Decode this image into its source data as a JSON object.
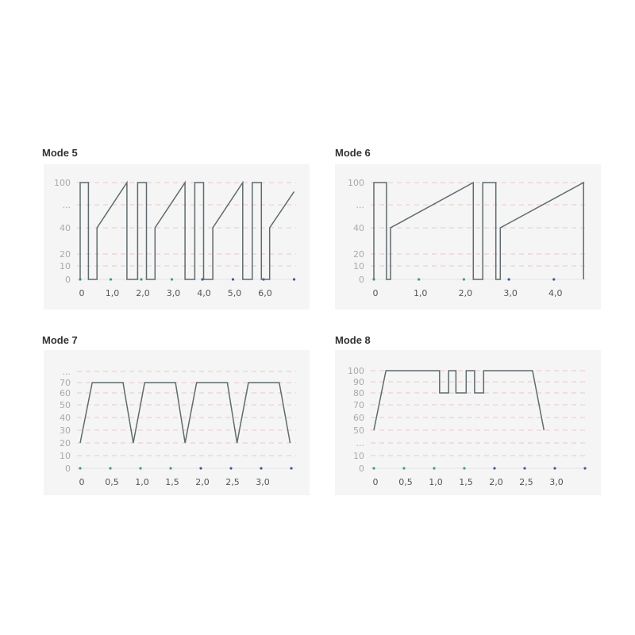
{
  "colors": {
    "line": "#5f6b6e",
    "grid": "#e9b8b8",
    "dot_early": "#3f9c86",
    "dot_late": "#3b5b93",
    "panel": "#f5f5f5"
  },
  "chart_data": [
    {
      "type": "line",
      "title": "Mode 5",
      "grid": true,
      "y_ticks": [
        "0",
        "10",
        "20",
        "40",
        "...",
        "100"
      ],
      "x_ticks": [
        "0",
        "1,0",
        "2,0",
        "3,0",
        "4,0",
        "5,0",
        "6,0"
      ],
      "x_tick_values": [
        0,
        1,
        2,
        3,
        4,
        5,
        6
      ],
      "x_markers": [
        0,
        1,
        2,
        3,
        4,
        5,
        6,
        7
      ],
      "xlim": [
        0,
        7
      ],
      "x": [
        0,
        0,
        0.27,
        0.27,
        0.55,
        0.55,
        1.53,
        1.53,
        1.88,
        1.88,
        2.17,
        2.17,
        2.45,
        2.45,
        3.43,
        3.43,
        3.75,
        3.75,
        4.04,
        4.04,
        4.34,
        4.34,
        5.32,
        5.32,
        5.63,
        5.63,
        5.93,
        5.93,
        6.2,
        6.2,
        7.0
      ],
      "y": [
        0,
        100,
        100,
        0,
        0,
        40,
        100,
        0,
        0,
        100,
        100,
        0,
        0,
        40,
        100,
        0,
        0,
        100,
        100,
        0,
        0,
        40,
        100,
        0,
        0,
        100,
        100,
        0,
        0,
        40,
        88
      ]
    },
    {
      "type": "line",
      "title": "Mode 6",
      "grid": true,
      "y_ticks": [
        "0",
        "10",
        "20",
        "40",
        "...",
        "100"
      ],
      "x_ticks": [
        "0",
        "1,0",
        "2,0",
        "3,0",
        "4,0"
      ],
      "x_tick_values": [
        0,
        1,
        2,
        3,
        4
      ],
      "x_markers": [
        0,
        1,
        2,
        3,
        4
      ],
      "xlim": [
        0,
        4.7
      ],
      "x": [
        0,
        0,
        0.28,
        0.28,
        0.37,
        0.37,
        2.21,
        2.21,
        2.42,
        2.42,
        2.71,
        2.71,
        2.81,
        2.81,
        4.66,
        4.66
      ],
      "y": [
        0,
        100,
        100,
        0,
        0,
        40,
        100,
        0,
        0,
        100,
        100,
        0,
        0,
        40,
        100,
        0
      ]
    },
    {
      "type": "line",
      "title": "Mode 7",
      "grid": true,
      "y_ticks": [
        "0",
        "10",
        "20",
        "30",
        "40",
        "50",
        "60",
        "70",
        "..."
      ],
      "x_ticks": [
        "0",
        "0,5",
        "1,0",
        "1,5",
        "2,0",
        "2,5",
        "3,0"
      ],
      "x_tick_values": [
        0,
        0.5,
        1,
        1.5,
        2,
        2.5,
        3
      ],
      "x_markers": [
        0,
        0.5,
        1,
        1.5,
        2,
        2.5,
        3,
        3.5
      ],
      "xlim": [
        0,
        3.5
      ],
      "x": [
        0,
        0.2,
        0.71,
        0.88,
        1.07,
        1.58,
        1.74,
        1.93,
        2.44,
        2.6,
        2.79,
        3.3,
        3.48
      ],
      "y": [
        20,
        70,
        70,
        20,
        70,
        70,
        20,
        70,
        70,
        20,
        70,
        70,
        20
      ]
    },
    {
      "type": "line",
      "title": "Mode 8",
      "grid": true,
      "y_ticks": [
        "0",
        "10",
        "...",
        "50",
        "60",
        "70",
        "80",
        "90",
        "100"
      ],
      "x_ticks": [
        "0",
        "0,5",
        "1,0",
        "1,5",
        "2,0",
        "2,5",
        "3,0"
      ],
      "x_tick_values": [
        0,
        0.5,
        1,
        1.5,
        2,
        2.5,
        3
      ],
      "x_markers": [
        0,
        0.5,
        1,
        1.5,
        2,
        2.5,
        3,
        3.5
      ],
      "xlim": [
        0,
        3.5
      ],
      "x": [
        0,
        0.2,
        1.09,
        1.09,
        1.24,
        1.24,
        1.36,
        1.36,
        1.53,
        1.53,
        1.67,
        1.67,
        1.82,
        1.82,
        2.63,
        2.82
      ],
      "y": [
        50,
        100,
        100,
        80,
        80,
        100,
        100,
        80,
        80,
        100,
        100,
        80,
        80,
        100,
        100,
        50
      ]
    }
  ]
}
